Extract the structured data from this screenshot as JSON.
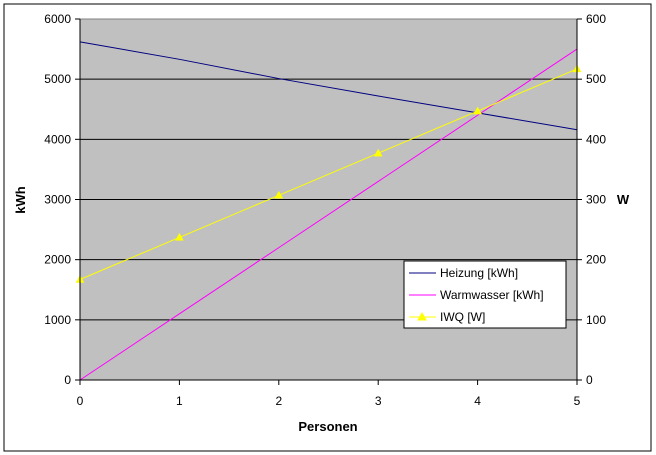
{
  "chart_data": {
    "type": "line",
    "title": "",
    "xlabel": "Personen",
    "ylabel": "kWh",
    "y2label": "W",
    "x": [
      0,
      1,
      2,
      3,
      4,
      5
    ],
    "x_ticks": [
      "0",
      "1",
      "2",
      "3",
      "4",
      "5"
    ],
    "xlim": [
      0,
      5
    ],
    "ylim": [
      0,
      6000
    ],
    "y_ticks": [
      "0",
      "1000",
      "2000",
      "3000",
      "4000",
      "5000",
      "6000"
    ],
    "y2lim": [
      0,
      600
    ],
    "y2_ticks": [
      "0",
      "100",
      "200",
      "300",
      "400",
      "500",
      "600"
    ],
    "grid": "horizontal",
    "legend_position": "bottom-right",
    "plot_background": "#c0c0c0",
    "series": [
      {
        "name": "Heizung [kWh]",
        "axis": "left",
        "color": "#000080",
        "marker": "none",
        "values": [
          5620,
          5330,
          5010,
          4720,
          4440,
          4160
        ]
      },
      {
        "name": "Warmwasser [kWh]",
        "axis": "left",
        "color": "#ff00ff",
        "marker": "none",
        "values": [
          0,
          1100,
          2200,
          3300,
          4400,
          5500
        ]
      },
      {
        "name": "IWQ [W]",
        "axis": "right",
        "color": "#ffff00",
        "marker": "triangle",
        "values": [
          167,
          237,
          307,
          377,
          447,
          517
        ]
      }
    ]
  }
}
